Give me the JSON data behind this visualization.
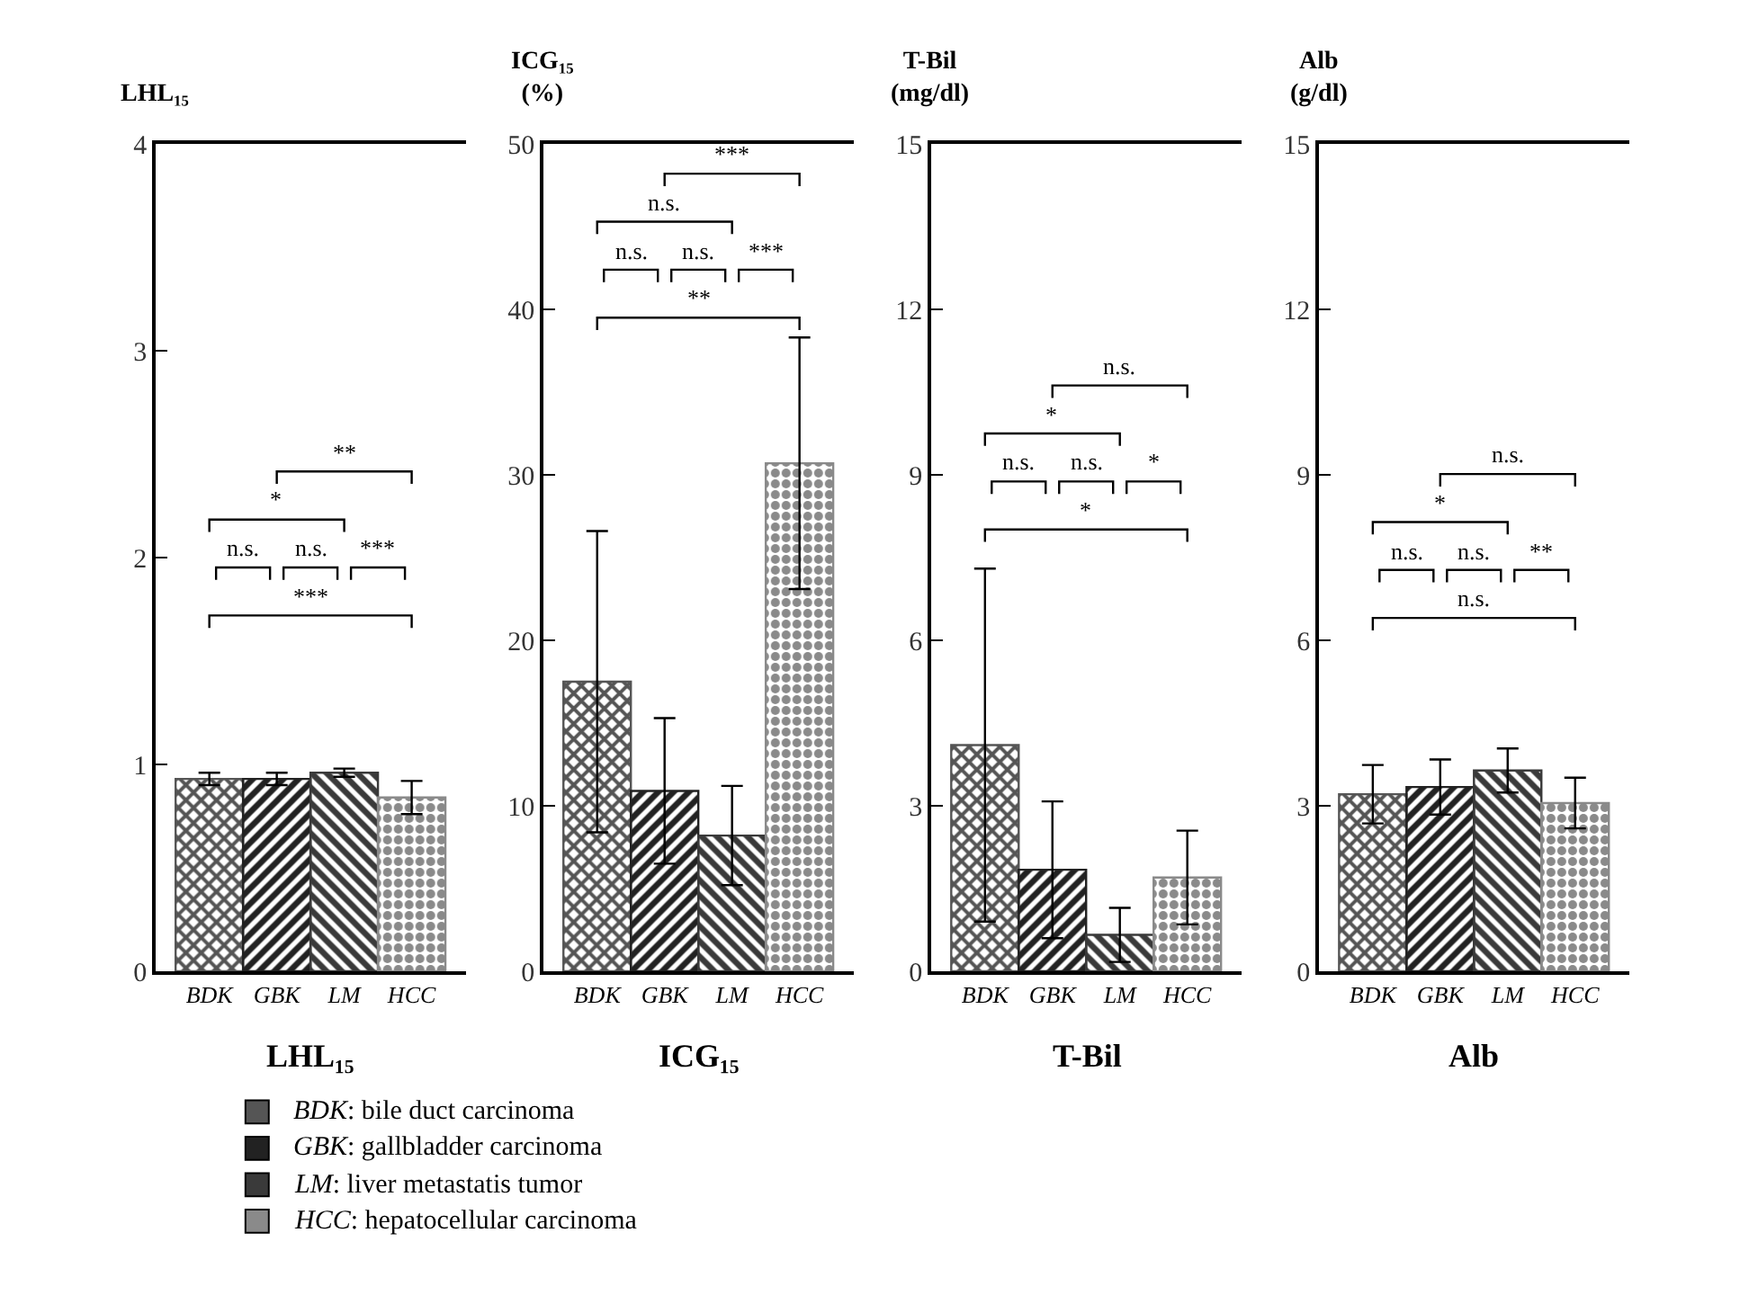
{
  "chart_data": [
    {
      "type": "bar",
      "categories": [
        "BDK",
        "GBK",
        "LM",
        "HCC"
      ],
      "colors": [
        "#555555",
        "#222222",
        "#3a3a3a",
        "#8a8a8a"
      ],
      "values": [
        0.93,
        0.93,
        0.96,
        0.84
      ],
      "errors": [
        0.03,
        0.03,
        0.02,
        0.08
      ],
      "ylabel": "LHL₁₅",
      "xlabel": "LHL₁₅",
      "ylim": [
        0,
        4
      ],
      "yticks": [
        0,
        1,
        2,
        3,
        4
      ],
      "annotations": [
        "**",
        "*",
        "n.s.",
        "n.s.",
        "***",
        "***",
        "BDK: bile duct carcinoma",
        "GBK: gallbladder carcinoma",
        "LM: liver metastatis tumor",
        "HCC: hepatocellular carcinoma"
      ]
    },
    {
      "type": "bar",
      "categories": [
        "BDK",
        "GBK",
        "LM",
        "HCC"
      ],
      "colors": [
        "#555555",
        "#222222",
        "#3a3a3a",
        "#8a8a8a"
      ],
      "values": [
        17.5,
        10.9,
        8.2,
        30.7
      ],
      "errors": [
        9.1,
        4.4,
        3.0,
        7.6
      ],
      "ylabel": "ICG₁₅\n(%)",
      "xlabel": "ICG₁₅",
      "ylim": [
        0,
        50
      ],
      "yticks": [
        0,
        10,
        20,
        30,
        40,
        50
      ],
      "annotations": [
        "***",
        "n.s.",
        "n.s.",
        "n.s.",
        "***",
        "**"
      ]
    },
    {
      "type": "bar",
      "categories": [
        "BDK",
        "GBK",
        "LM",
        "HCC"
      ],
      "colors": [
        "#555555",
        "#222222",
        "#3a3a3a",
        "#8a8a8a"
      ],
      "values": [
        4.1,
        1.84,
        0.66,
        1.7
      ],
      "errors": [
        3.2,
        1.24,
        0.49,
        0.85
      ],
      "ylabel": "T-Bil\n(mg/dl)",
      "xlabel": "T-Bil",
      "ylim": [
        0,
        15
      ],
      "yticks": [
        0,
        3,
        6,
        9,
        12,
        15
      ],
      "annotations": [
        "n.s.",
        "*",
        "n.s.",
        "n.s.",
        "*",
        "*"
      ]
    },
    {
      "type": "bar",
      "categories": [
        "BDK",
        "GBK",
        "LM",
        "HCC"
      ],
      "colors": [
        "#555555",
        "#222222",
        "#3a3a3a",
        "#8a8a8a"
      ],
      "values": [
        3.21,
        3.34,
        3.64,
        3.05
      ],
      "errors": [
        0.53,
        0.5,
        0.4,
        0.46
      ],
      "ylabel": "Alb\n(g/dl)",
      "xlabel": "Alb",
      "ylim": [
        0,
        15
      ],
      "yticks": [
        0,
        3,
        6,
        9,
        12,
        15
      ],
      "annotations": [
        "n.s.",
        "*",
        "n.s.",
        "n.s.",
        "**",
        "n.s."
      ]
    }
  ]
}
